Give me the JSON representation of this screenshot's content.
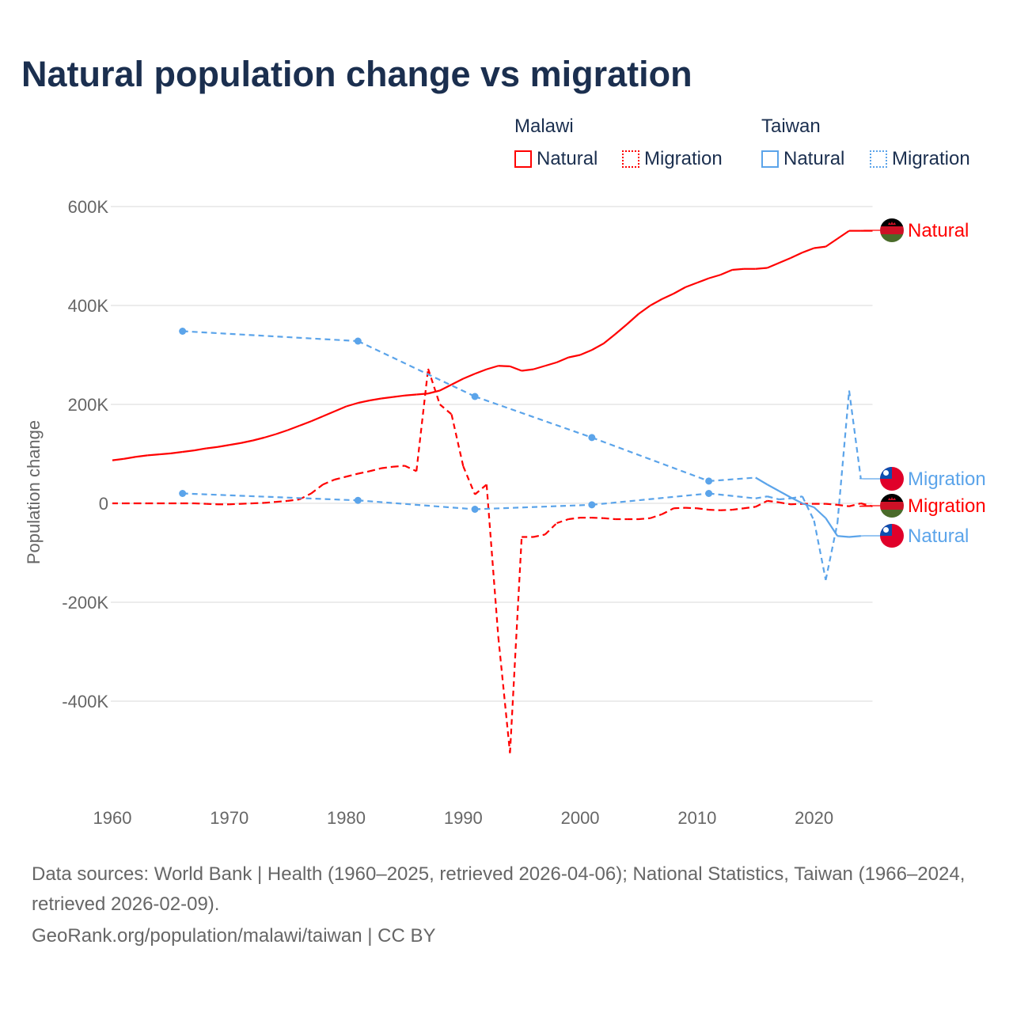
{
  "title": "Natural population change vs migration",
  "legend": {
    "groups": [
      {
        "country": "Malawi",
        "items": [
          {
            "label": "Natural",
            "style": "solid"
          },
          {
            "label": "Migration",
            "style": "dotted"
          }
        ],
        "color": "#ff0000"
      },
      {
        "country": "Taiwan",
        "items": [
          {
            "label": "Natural",
            "style": "solid"
          },
          {
            "label": "Migration",
            "style": "dotted"
          }
        ],
        "color": "#5ba4ea"
      }
    ]
  },
  "footer": {
    "sources": "Data sources: World Bank | Health (1960–2025, retrieved 2026-04-06); National Statistics, Taiwan (1966–2024, retrieved 2026-02-09).",
    "credit": "GeoRank.org/population/malawi/taiwan | CC BY"
  },
  "chart_data": {
    "type": "line",
    "title": "Natural population change vs migration",
    "xlabel": "",
    "ylabel": "Population change",
    "xlim": [
      1960,
      2025
    ],
    "ylim": [
      -400000,
      600000
    ],
    "x_ticks": [
      "1960",
      "1970",
      "1980",
      "1990",
      "2000",
      "2010",
      "2020"
    ],
    "y_ticks": [
      {
        "value": 600000,
        "label": "600K"
      },
      {
        "value": 400000,
        "label": "400K"
      },
      {
        "value": 200000,
        "label": "200K"
      },
      {
        "value": 0,
        "label": "0"
      },
      {
        "value": -200000,
        "label": "-200K"
      },
      {
        "value": -400000,
        "label": "-400K"
      }
    ],
    "grid": true,
    "series": [
      {
        "name": "Malawi Natural",
        "end_label": "Natural",
        "country": "Malawi",
        "color": "#ff0000",
        "dash": "solid",
        "x": [
          1960,
          1961,
          1962,
          1963,
          1964,
          1965,
          1966,
          1967,
          1968,
          1969,
          1970,
          1971,
          1972,
          1973,
          1974,
          1975,
          1976,
          1977,
          1978,
          1979,
          1980,
          1981,
          1982,
          1983,
          1984,
          1985,
          1986,
          1987,
          1988,
          1989,
          1990,
          1991,
          1992,
          1993,
          1994,
          1995,
          1996,
          1997,
          1998,
          1999,
          2000,
          2001,
          2002,
          2003,
          2004,
          2005,
          2006,
          2007,
          2008,
          2009,
          2010,
          2011,
          2012,
          2013,
          2014,
          2015,
          2016,
          2017,
          2018,
          2019,
          2020,
          2021,
          2022,
          2023,
          2024,
          2025
        ],
        "y": [
          87000,
          90000,
          94000,
          97000,
          99000,
          101000,
          104000,
          107000,
          111000,
          114000,
          118000,
          122000,
          127000,
          133000,
          140000,
          148000,
          157000,
          166000,
          176000,
          186000,
          196000,
          203000,
          208000,
          212000,
          215000,
          218000,
          220000,
          222000,
          228000,
          240000,
          252000,
          262000,
          271000,
          278000,
          277000,
          268000,
          271000,
          278000,
          285000,
          295000,
          300000,
          310000,
          323000,
          342000,
          362000,
          383000,
          400000,
          413000,
          424000,
          437000,
          446000,
          455000,
          462000,
          472000,
          474000,
          474000,
          476000,
          486000,
          496000,
          507000,
          516000,
          519000,
          535000,
          551000,
          551000,
          551000
        ]
      },
      {
        "name": "Malawi Migration",
        "end_label": "Migration",
        "country": "Malawi",
        "color": "#ff0000",
        "dash": "dashed",
        "x": [
          1960,
          1961,
          1962,
          1963,
          1964,
          1965,
          1966,
          1967,
          1968,
          1969,
          1970,
          1971,
          1972,
          1973,
          1974,
          1975,
          1976,
          1977,
          1978,
          1979,
          1980,
          1981,
          1982,
          1983,
          1984,
          1985,
          1986,
          1987,
          1988,
          1989,
          1990,
          1991,
          1992,
          1993,
          1994,
          1995,
          1996,
          1997,
          1998,
          1999,
          2000,
          2001,
          2002,
          2003,
          2004,
          2005,
          2006,
          2007,
          2008,
          2009,
          2010,
          2011,
          2012,
          2013,
          2014,
          2015,
          2016,
          2017,
          2018,
          2019,
          2020,
          2021,
          2022,
          2023,
          2024,
          2025
        ],
        "y": [
          0,
          0,
          0,
          0,
          0,
          0,
          0,
          0,
          -1000,
          -2000,
          -2000,
          -1000,
          0,
          1000,
          3000,
          5000,
          8000,
          20000,
          38000,
          48000,
          54000,
          60000,
          65000,
          71000,
          74000,
          76000,
          65000,
          272000,
          200000,
          180000,
          75000,
          18000,
          38000,
          -270000,
          -505000,
          -68000,
          -68000,
          -63000,
          -40000,
          -32000,
          -29000,
          -29000,
          -30000,
          -32000,
          -32000,
          -32000,
          -30000,
          -22000,
          -10000,
          -9000,
          -10000,
          -13000,
          -14000,
          -13000,
          -10000,
          -7000,
          5000,
          2000,
          -2000,
          -1000,
          -1000,
          -1000,
          -3000,
          -6000,
          0,
          -6000
        ]
      },
      {
        "name": "Taiwan Natural",
        "end_label": "Natural",
        "country": "Taiwan",
        "color": "#5ba4ea",
        "dash": "solid",
        "x": [
          1966,
          1981,
          1991,
          2001,
          2011,
          2015,
          2016,
          2017,
          2018,
          2019,
          2020,
          2021,
          2022,
          2023,
          2024
        ],
        "y": [
          348000,
          328000,
          216000,
          133000,
          45000,
          52000,
          38000,
          25000,
          12000,
          0,
          -8000,
          -30000,
          -66000,
          -68000,
          -66000
        ]
      },
      {
        "name": "Taiwan Migration",
        "end_label": "Migration",
        "country": "Taiwan",
        "color": "#5ba4ea",
        "dash": "dashed",
        "x": [
          1966,
          1981,
          1991,
          2001,
          2011,
          2015,
          2016,
          2017,
          2018,
          2019,
          2020,
          2021,
          2022,
          2023,
          2024
        ],
        "y": [
          20000,
          6000,
          -12000,
          -3000,
          20000,
          10000,
          14000,
          8000,
          10000,
          14000,
          -35000,
          -155000,
          -40000,
          228000,
          50000
        ]
      }
    ]
  }
}
